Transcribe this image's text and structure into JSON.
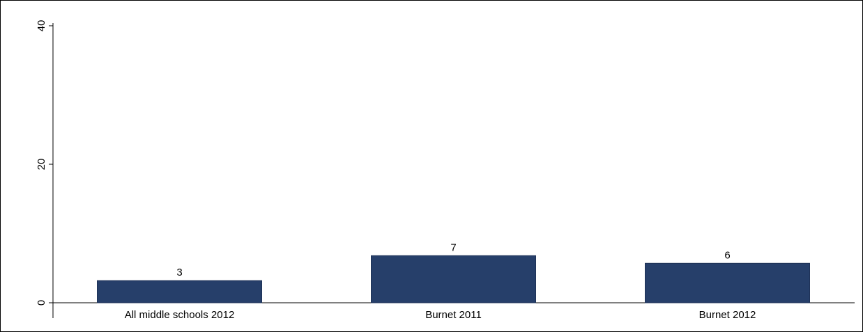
{
  "chart_data": {
    "type": "bar",
    "title": "",
    "xlabel": "",
    "ylabel": "",
    "categories": [
      "All middle schools 2012",
      "Burnet 2011",
      "Burnet 2012"
    ],
    "values": [
      3.2,
      6.8,
      5.7
    ],
    "data_labels": [
      "3",
      "7",
      "6"
    ],
    "ylim": [
      0,
      40
    ],
    "yticks": [
      0,
      20,
      40
    ],
    "ytick_labels": [
      "0",
      "20",
      "40"
    ],
    "grid": false,
    "legend": "none",
    "colors": {
      "bar": "#263f6a",
      "bar_edge": "#1e3257",
      "axis": "#000000",
      "text": "#000000"
    }
  }
}
